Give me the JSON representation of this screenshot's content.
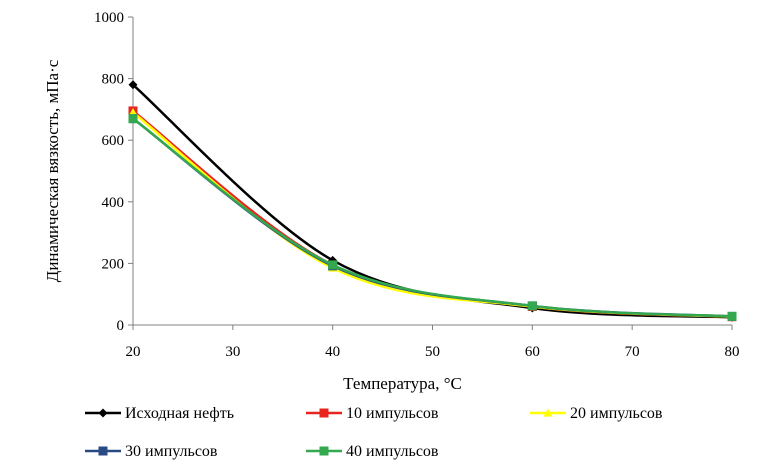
{
  "chart_data": {
    "type": "line",
    "xlabel": "Температура, °C",
    "ylabel": "Динамическая вязкость, мПа·с",
    "xlim": [
      20,
      80
    ],
    "ylim": [
      0,
      1000
    ],
    "xticks": [
      20,
      30,
      40,
      50,
      60,
      70,
      80
    ],
    "yticks": [
      0,
      200,
      400,
      600,
      800,
      1000
    ],
    "grid": false,
    "legend_position": "bottom",
    "x": [
      20,
      40,
      60,
      80
    ],
    "series": [
      {
        "name": "Исходная нефть",
        "values": [
          780,
          210,
          55,
          25
        ],
        "color": "#000000",
        "marker": "diamond"
      },
      {
        "name": "10 импульсов",
        "values": [
          695,
          195,
          60,
          27
        ],
        "color": "#e8241f",
        "marker": "square"
      },
      {
        "name": "20 импульсов",
        "values": [
          690,
          185,
          60,
          27
        ],
        "color": "#ffff00",
        "marker": "triangle"
      },
      {
        "name": "30 импульсов",
        "values": [
          670,
          192,
          62,
          28
        ],
        "color": "#2a4a84",
        "marker": "square"
      },
      {
        "name": "40 импульсов",
        "values": [
          670,
          195,
          62,
          28
        ],
        "color": "#33a84f",
        "marker": "square"
      }
    ]
  }
}
